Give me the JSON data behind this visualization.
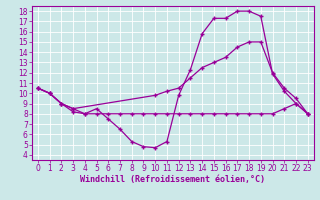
{
  "xlabel": "Windchill (Refroidissement éolien,°C)",
  "bg_color": "#cce8e8",
  "line_color": "#990099",
  "xlim": [
    -0.5,
    23.5
  ],
  "ylim": [
    3.5,
    18.5
  ],
  "xticks": [
    0,
    1,
    2,
    3,
    4,
    5,
    6,
    7,
    8,
    9,
    10,
    11,
    12,
    13,
    14,
    15,
    16,
    17,
    18,
    19,
    20,
    21,
    22,
    23
  ],
  "yticks": [
    4,
    5,
    6,
    7,
    8,
    9,
    10,
    11,
    12,
    13,
    14,
    15,
    16,
    17,
    18
  ],
  "line1_x": [
    0,
    1,
    2,
    3,
    4,
    5,
    6,
    7,
    8,
    9,
    10,
    11,
    12,
    13,
    14,
    15,
    16,
    17,
    18,
    19,
    20,
    21,
    22,
    23
  ],
  "line1_y": [
    10.5,
    10.0,
    9.0,
    8.2,
    8.0,
    8.5,
    7.5,
    6.5,
    5.3,
    4.8,
    4.7,
    5.3,
    9.8,
    12.3,
    15.8,
    17.3,
    17.3,
    18.0,
    18.0,
    17.5,
    11.9,
    10.2,
    9.0,
    8.0
  ],
  "line2_x": [
    0,
    1,
    2,
    3,
    4,
    5,
    6,
    7,
    8,
    9,
    10,
    11,
    12,
    13,
    14,
    15,
    16,
    17,
    18,
    19,
    20,
    21,
    22,
    23
  ],
  "line2_y": [
    10.5,
    10.0,
    9.0,
    8.5,
    8.0,
    8.0,
    8.0,
    8.0,
    8.0,
    8.0,
    8.0,
    8.0,
    8.0,
    8.0,
    8.0,
    8.0,
    8.0,
    8.0,
    8.0,
    8.0,
    8.0,
    8.5,
    9.0,
    8.0
  ],
  "line3_x": [
    0,
    1,
    2,
    3,
    10,
    11,
    12,
    13,
    14,
    15,
    16,
    17,
    18,
    19,
    20,
    21,
    22,
    23
  ],
  "line3_y": [
    10.5,
    10.0,
    9.0,
    8.5,
    9.8,
    10.2,
    10.5,
    11.5,
    12.5,
    13.0,
    13.5,
    14.5,
    15.0,
    15.0,
    12.0,
    10.5,
    9.5,
    8.0
  ],
  "tick_fontsize": 5.5,
  "xlabel_fontsize": 6.0
}
